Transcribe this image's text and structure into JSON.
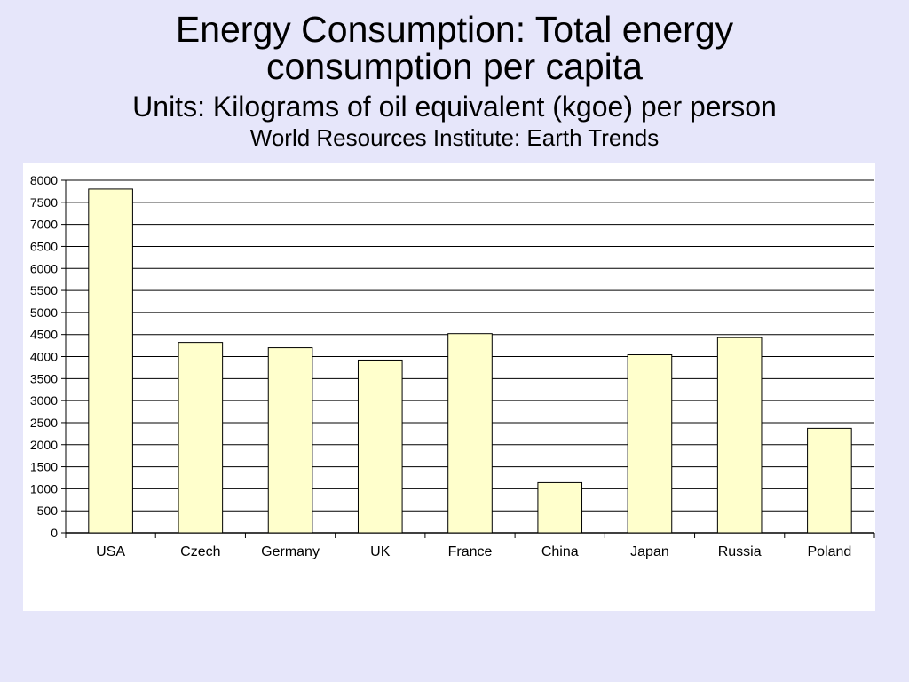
{
  "title_line1": "Energy Consumption: Total energy",
  "title_line2": "consumption per capita",
  "subtitle": "Units: Kilograms of oil equivalent (kgoe) per person",
  "source": "World Resources Institute: Earth Trends",
  "colors": {
    "background": "#e6e6fa",
    "panel": "#ffffff",
    "bar_fill": "#ffffcc",
    "bar_stroke": "#000000",
    "grid": "#000000"
  },
  "chart_data": {
    "type": "bar",
    "categories": [
      "USA",
      "Czech",
      "Germany",
      "UK",
      "France",
      "China",
      "Japan",
      "Russia",
      "Poland"
    ],
    "values": [
      7800,
      4320,
      4200,
      3920,
      4520,
      1140,
      4040,
      4430,
      2370
    ],
    "ylim": [
      0,
      8000
    ],
    "ytick_step": 500,
    "grid": true,
    "legend": "none"
  }
}
